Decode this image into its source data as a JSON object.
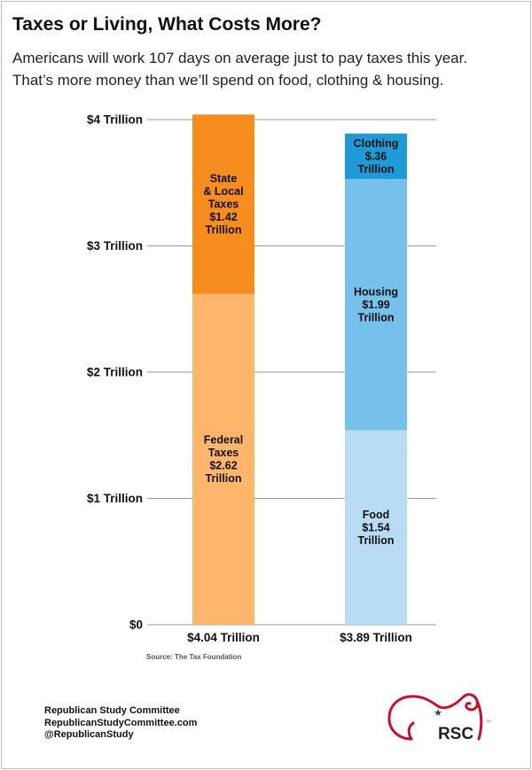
{
  "header": {
    "title": "Taxes or Living, What Costs More?",
    "subtitle_line1": "Americans will work 107 days on average just to pay taxes this year.",
    "subtitle_line2": "That’s more money than we’ll spend on food, clothing & housing."
  },
  "chart_data": {
    "type": "bar",
    "stacked": true,
    "title": "Taxes or Living, What Costs More?",
    "ylim": [
      0,
      4
    ],
    "y_ticks": [
      {
        "value": 0,
        "label": "$0"
      },
      {
        "value": 1,
        "label": "$1 Trillion"
      },
      {
        "value": 2,
        "label": "$2 Trillion"
      },
      {
        "value": 3,
        "label": "$3 Trillion"
      },
      {
        "value": 4,
        "label": "$4 Trillion"
      }
    ],
    "bars": [
      {
        "total_label": "$4.04 Trillion",
        "segments": [
          {
            "name": "Federal Taxes",
            "value": 2.62,
            "color": "#fdb66b",
            "label_lines": [
              "Federal",
              "Taxes",
              "$2.62",
              "Trillion"
            ]
          },
          {
            "name": "State & Local Taxes",
            "value": 1.42,
            "color": "#f68d1e",
            "label_lines": [
              "State",
              "& Local",
              "Taxes",
              "$1.42",
              "Trillion"
            ]
          }
        ]
      },
      {
        "total_label": "$3.89 Trillion",
        "segments": [
          {
            "name": "Food",
            "value": 1.54,
            "color": "#b8dcf3",
            "label_lines": [
              "Food",
              "$1.54",
              "Trillion"
            ]
          },
          {
            "name": "Housing",
            "value": 1.99,
            "color": "#76c0ec",
            "label_lines": [
              "Housing",
              "$1.99",
              "Trillion"
            ]
          },
          {
            "name": "Clothing",
            "value": 0.36,
            "color": "#1f9ad7",
            "label_lines": [
              "Clothing",
              "$.36",
              "Trillion"
            ]
          }
        ]
      }
    ]
  },
  "source": "Source: The Tax Foundation",
  "footer": {
    "org": "Republican Study Committee",
    "website": "RepublicanStudyCommittee.com",
    "handle": "@RepublicanStudy"
  },
  "logo": {
    "text": "RSC",
    "tm": "TM",
    "accent": "#c8102e",
    "star_color": "#1f3a8a"
  }
}
